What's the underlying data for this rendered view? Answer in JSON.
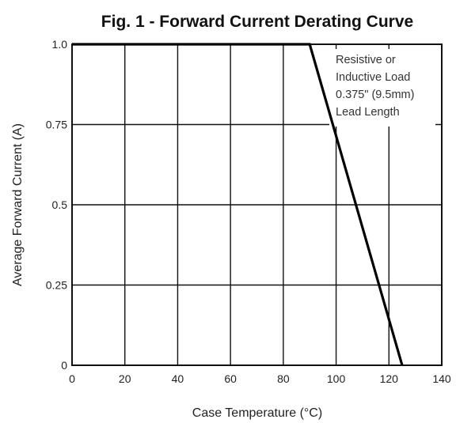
{
  "chart_data": {
    "type": "line",
    "title": "Fig. 1 - Forward Current Derating Curve",
    "xlabel": "Case Temperature (°C)",
    "ylabel": "Average Forward Current (A)",
    "xlim": [
      0,
      140
    ],
    "ylim": [
      0,
      1.0
    ],
    "x_ticks": [
      "0",
      "20",
      "40",
      "60",
      "80",
      "100",
      "120",
      "140"
    ],
    "y_ticks": [
      "0",
      "0.25",
      "0.5",
      "0.75",
      "1.0"
    ],
    "grid": true,
    "annotation": [
      "Resistive or",
      "Inductive Load",
      "0.375\" (9.5mm)",
      "Lead Length"
    ],
    "series": [
      {
        "x": [
          0,
          90,
          125
        ],
        "y": [
          1.0,
          1.0,
          0
        ]
      }
    ]
  }
}
